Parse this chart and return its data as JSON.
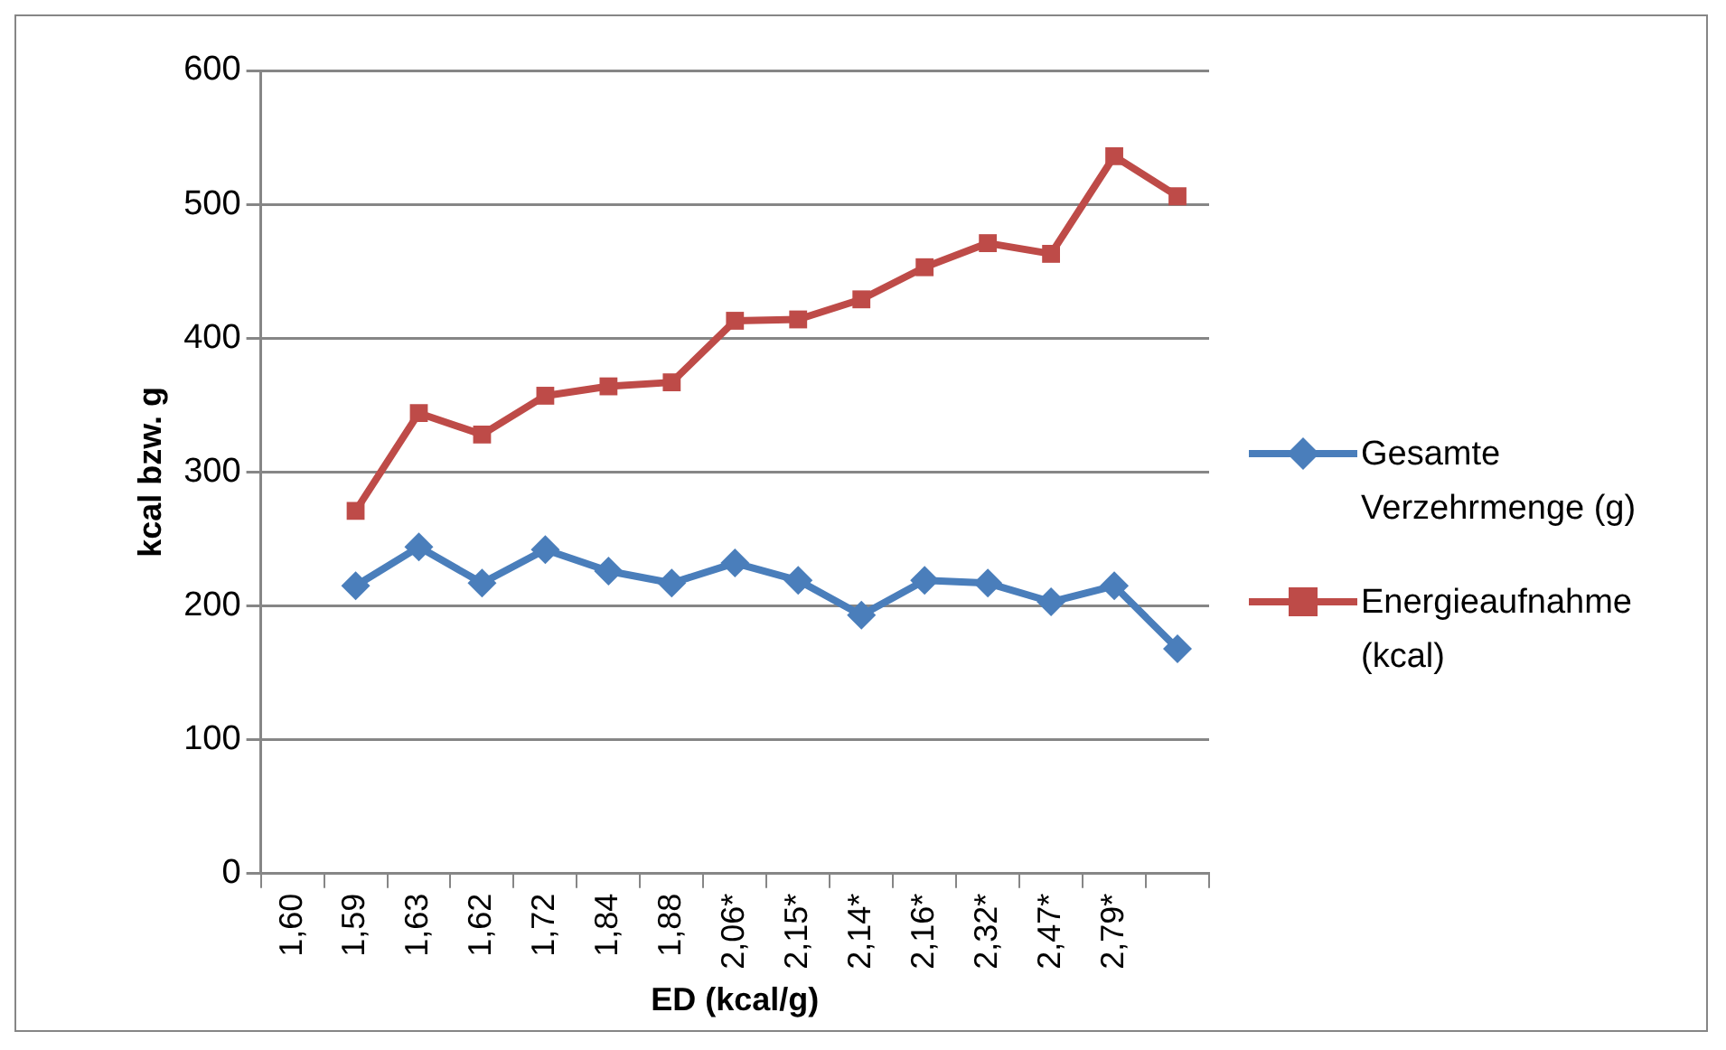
{
  "chart_data": {
    "type": "line",
    "xlabel": "ED (kcal/g)",
    "ylabel": "kcal bzw. g",
    "categories": [
      "1,60",
      "1,59",
      "1,63",
      "1,62",
      "1,72",
      "1,84",
      "1,88",
      "2,06*",
      "2,15*",
      "2,14*",
      "2,16*",
      "2,32*",
      "2,47*",
      "2,79*",
      null
    ],
    "series": [
      {
        "name": "Gesamte Verzehrmenge (g)",
        "color": "#4a7ebb",
        "marker": "diamond",
        "values": [
          null,
          215,
          244,
          217,
          242,
          226,
          217,
          232,
          219,
          193,
          219,
          217,
          203,
          215,
          168
        ]
      },
      {
        "name": "Energieaufnahme (kcal)",
        "color": "#be4b48",
        "marker": "square",
        "values": [
          null,
          271,
          344,
          328,
          357,
          364,
          367,
          413,
          414,
          429,
          453,
          471,
          463,
          536,
          506
        ]
      }
    ],
    "ylim": [
      0,
      600
    ],
    "yticks": [
      0,
      100,
      200,
      300,
      400,
      500,
      600
    ],
    "grid": "y",
    "legend": "right",
    "line_style": "solid"
  }
}
